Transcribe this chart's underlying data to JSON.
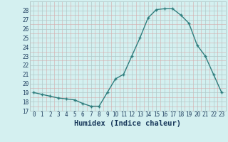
{
  "x": [
    0,
    1,
    2,
    3,
    4,
    5,
    6,
    7,
    8,
    9,
    10,
    11,
    12,
    13,
    14,
    15,
    16,
    17,
    18,
    19,
    20,
    21,
    22,
    23
  ],
  "y": [
    19.0,
    18.8,
    18.6,
    18.4,
    18.3,
    18.2,
    17.8,
    17.5,
    17.5,
    19.0,
    20.5,
    21.0,
    23.0,
    25.0,
    27.2,
    28.1,
    28.2,
    28.2,
    27.5,
    26.6,
    24.2,
    23.0,
    21.0,
    19.0
  ],
  "line_color": "#2e7d7d",
  "marker": "P",
  "bg_color": "#d4f0f0",
  "grid_major_color": "#b0c8c8",
  "grid_minor_color": "#c4dcdc",
  "xlabel": "Humidex (Indice chaleur)",
  "ylim": [
    17,
    29
  ],
  "xlim": [
    -0.5,
    23.5
  ],
  "yticks": [
    17,
    18,
    19,
    20,
    21,
    22,
    23,
    24,
    25,
    26,
    27,
    28
  ],
  "xticks": [
    0,
    1,
    2,
    3,
    4,
    5,
    6,
    7,
    8,
    9,
    10,
    11,
    12,
    13,
    14,
    15,
    16,
    17,
    18,
    19,
    20,
    21,
    22,
    23
  ],
  "tick_color": "#1a3a5c",
  "tick_fontsize": 5.5,
  "xlabel_fontsize": 7.5,
  "linewidth": 1.0,
  "markersize": 3.0,
  "markeredgewidth": 1.0
}
